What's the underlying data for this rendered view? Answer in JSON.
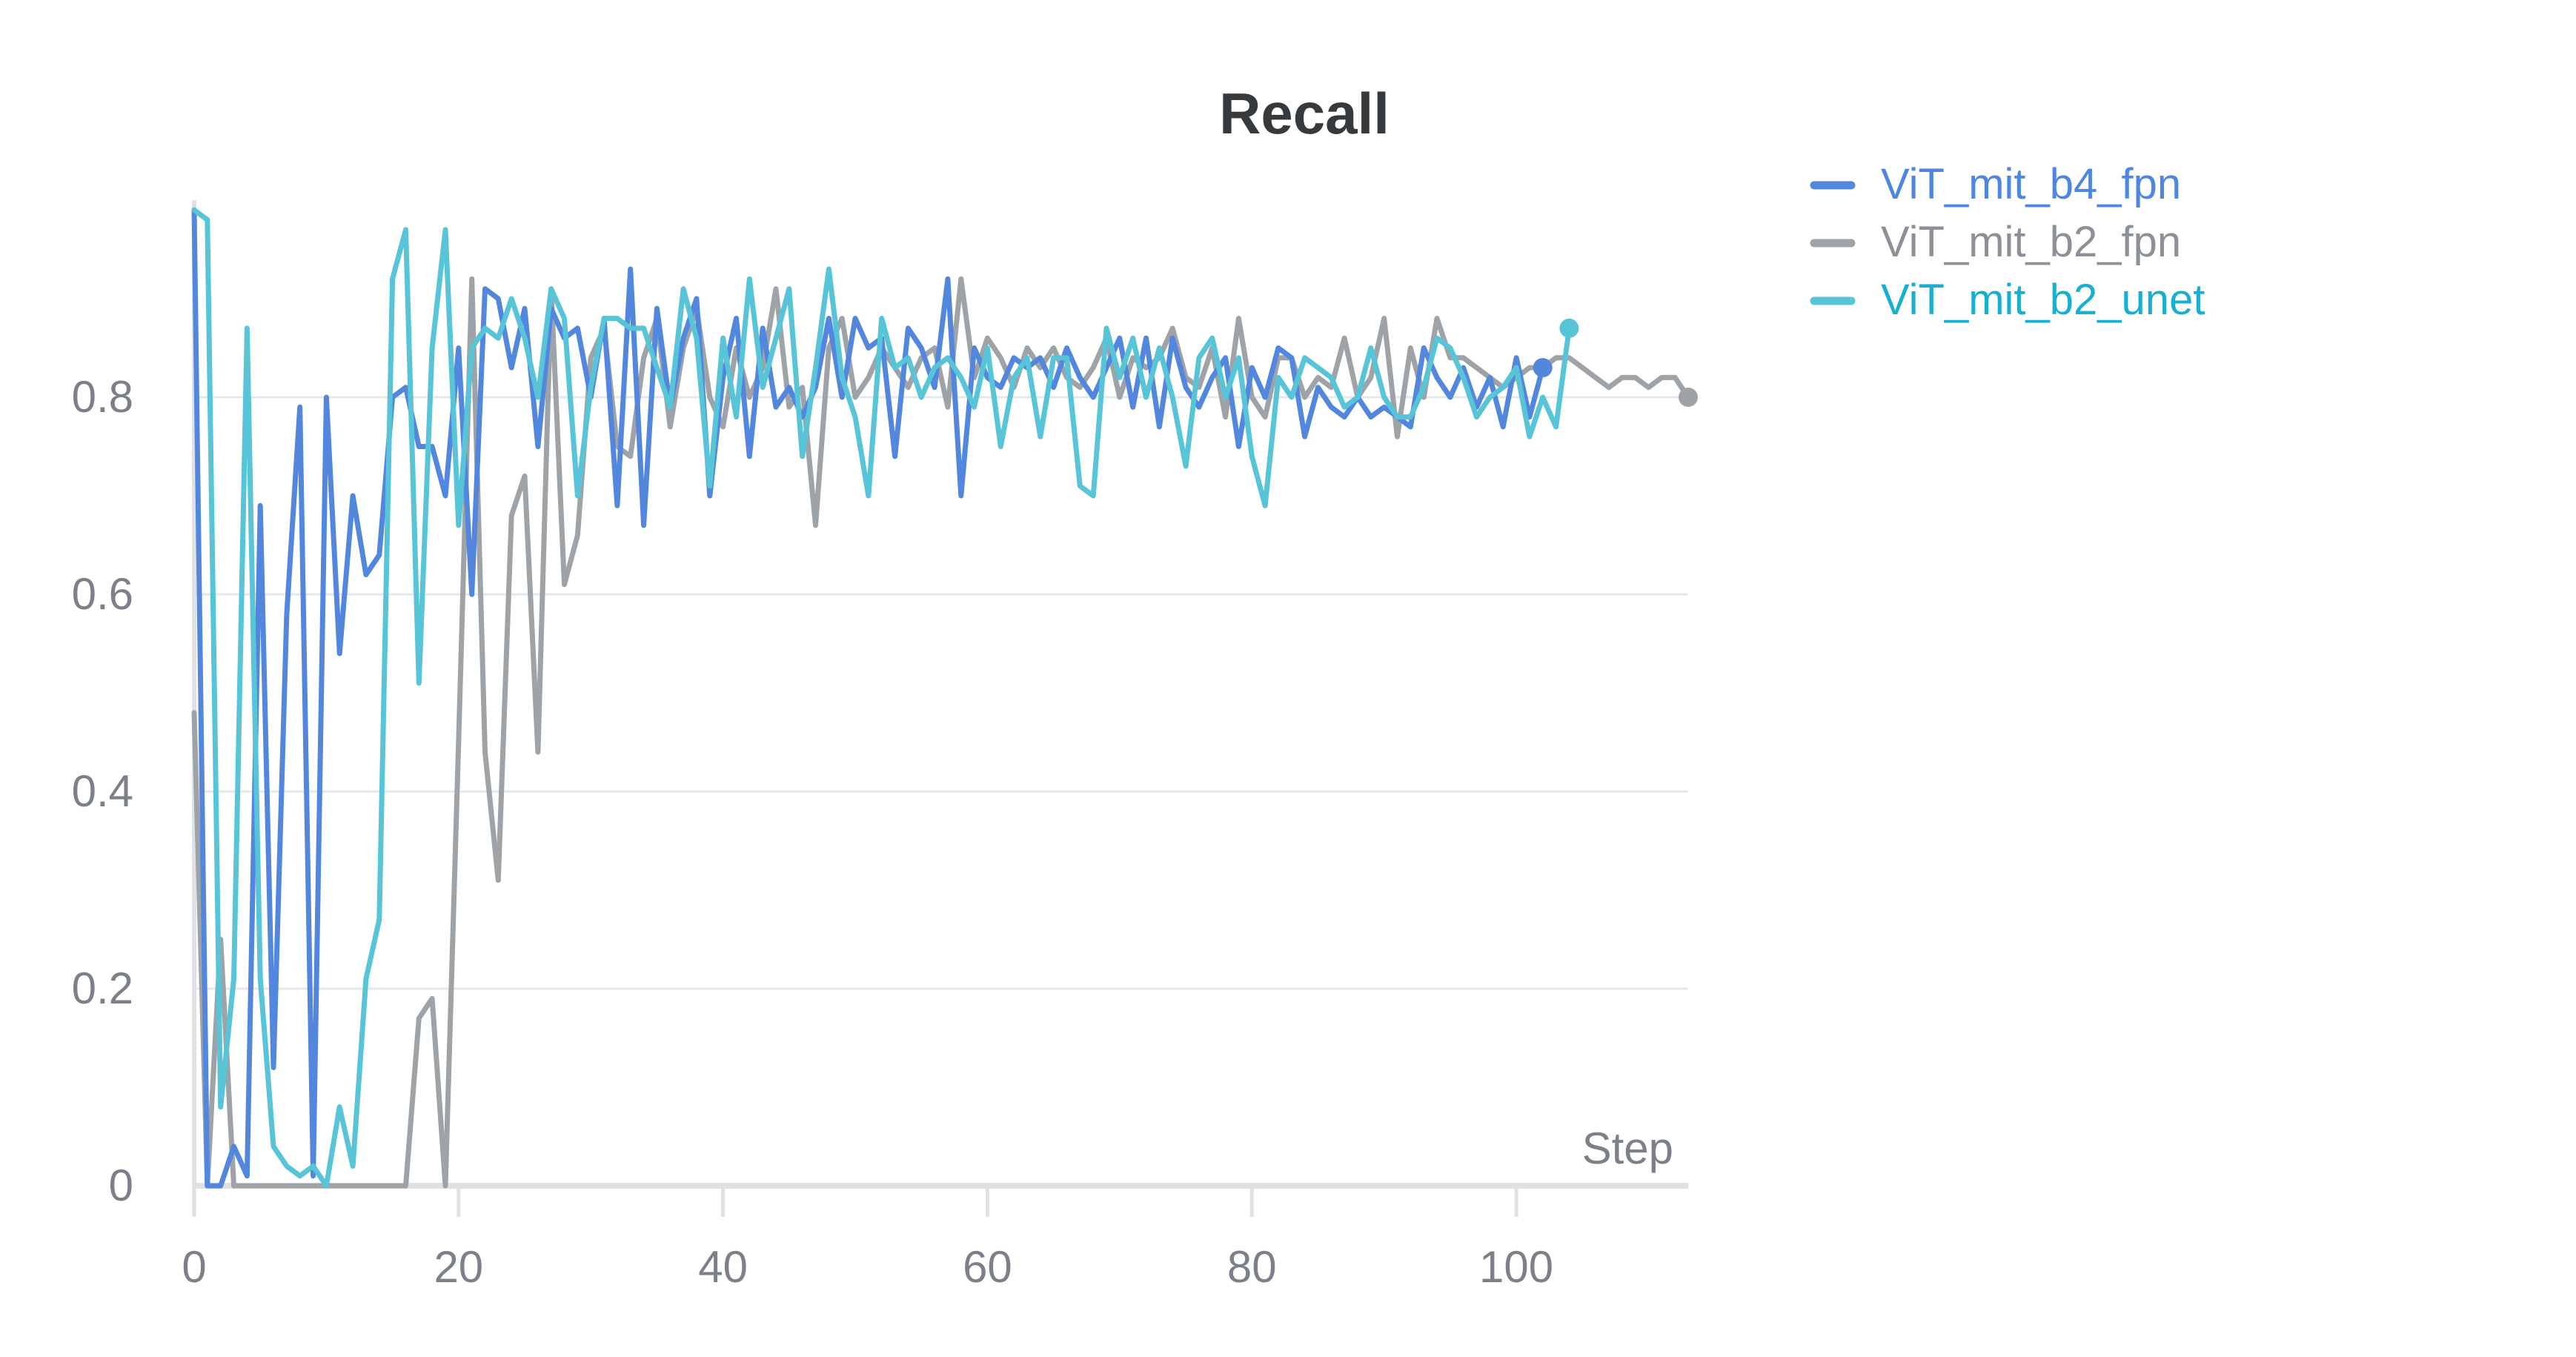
{
  "chart_data": {
    "type": "line",
    "title": "Recall",
    "xlabel": "Step",
    "ylabel": "",
    "xlim": [
      0,
      113
    ],
    "ylim": [
      0,
      1
    ],
    "x_ticks": [
      0,
      20,
      40,
      60,
      80,
      100
    ],
    "y_ticks": [
      0,
      0.2,
      0.4,
      0.6,
      0.8
    ],
    "y_tick_labels": [
      "0",
      "0.2",
      "0.4",
      "0.6",
      "0.8"
    ],
    "grid": true,
    "legend": "right",
    "series": [
      {
        "name": "ViT_mit_b4_fpn",
        "color": "#5387dd",
        "end_marker": true,
        "x": [
          0,
          1,
          2,
          3,
          4,
          5,
          6,
          7,
          8,
          9,
          10,
          11,
          12,
          13,
          14,
          15,
          16,
          17,
          18,
          19,
          20,
          21,
          22,
          23,
          24,
          25,
          26,
          27,
          28,
          29,
          30,
          31,
          32,
          33,
          34,
          35,
          36,
          37,
          38,
          39,
          40,
          41,
          42,
          43,
          44,
          45,
          46,
          47,
          48,
          49,
          50,
          51,
          52,
          53,
          54,
          55,
          56,
          57,
          58,
          59,
          60,
          61,
          62,
          63,
          64,
          65,
          66,
          67,
          68,
          69,
          70,
          71,
          72,
          73,
          74,
          75,
          76,
          77,
          78,
          79,
          80,
          81,
          82,
          83,
          84,
          85,
          86,
          87,
          88,
          89,
          90,
          91,
          92,
          93,
          94,
          95,
          96,
          97,
          98,
          99,
          100,
          101,
          102
        ],
        "y": [
          0.99,
          0.0,
          0.0,
          0.04,
          0.01,
          0.69,
          0.12,
          0.58,
          0.79,
          0.01,
          0.8,
          0.54,
          0.7,
          0.62,
          0.64,
          0.8,
          0.81,
          0.75,
          0.75,
          0.7,
          0.85,
          0.6,
          0.91,
          0.9,
          0.83,
          0.89,
          0.75,
          0.89,
          0.86,
          0.87,
          0.8,
          0.88,
          0.69,
          0.93,
          0.67,
          0.89,
          0.79,
          0.86,
          0.9,
          0.7,
          0.82,
          0.88,
          0.74,
          0.87,
          0.79,
          0.81,
          0.78,
          0.81,
          0.88,
          0.8,
          0.88,
          0.85,
          0.86,
          0.74,
          0.87,
          0.85,
          0.81,
          0.92,
          0.7,
          0.85,
          0.82,
          0.81,
          0.84,
          0.83,
          0.84,
          0.81,
          0.85,
          0.82,
          0.8,
          0.83,
          0.86,
          0.79,
          0.86,
          0.77,
          0.86,
          0.81,
          0.79,
          0.82,
          0.84,
          0.75,
          0.83,
          0.8,
          0.85,
          0.84,
          0.76,
          0.81,
          0.79,
          0.78,
          0.8,
          0.78,
          0.79,
          0.78,
          0.77,
          0.85,
          0.82,
          0.8,
          0.83,
          0.79,
          0.82,
          0.77,
          0.84,
          0.78,
          0.83
        ]
      },
      {
        "name": "ViT_mit_b2_fpn",
        "color": "#9ea3a8",
        "end_marker": true,
        "x": [
          0,
          1,
          2,
          3,
          4,
          5,
          6,
          7,
          8,
          9,
          10,
          11,
          12,
          13,
          14,
          15,
          16,
          17,
          18,
          19,
          20,
          21,
          22,
          23,
          24,
          25,
          26,
          27,
          28,
          29,
          30,
          31,
          32,
          33,
          34,
          35,
          36,
          37,
          38,
          39,
          40,
          41,
          42,
          43,
          44,
          45,
          46,
          47,
          48,
          49,
          50,
          51,
          52,
          53,
          54,
          55,
          56,
          57,
          58,
          59,
          60,
          61,
          62,
          63,
          64,
          65,
          66,
          67,
          68,
          69,
          70,
          71,
          72,
          73,
          74,
          75,
          76,
          77,
          78,
          79,
          80,
          81,
          82,
          83,
          84,
          85,
          86,
          87,
          88,
          89,
          90,
          91,
          92,
          93,
          94,
          95,
          96,
          97,
          98,
          99,
          100,
          101,
          102,
          103,
          104,
          105,
          106,
          107,
          108,
          109,
          110,
          111,
          112,
          113
        ],
        "y": [
          0.48,
          0.0,
          0.25,
          0.0,
          0.0,
          0.0,
          0.0,
          0.0,
          0.0,
          0.0,
          0.0,
          0.0,
          0.0,
          0.0,
          0.0,
          0.0,
          0.0,
          0.17,
          0.19,
          0.0,
          0.45,
          0.92,
          0.44,
          0.31,
          0.68,
          0.72,
          0.44,
          0.91,
          0.61,
          0.66,
          0.84,
          0.87,
          0.75,
          0.74,
          0.84,
          0.88,
          0.77,
          0.85,
          0.89,
          0.8,
          0.77,
          0.85,
          0.8,
          0.83,
          0.91,
          0.79,
          0.81,
          0.67,
          0.85,
          0.88,
          0.8,
          0.82,
          0.85,
          0.83,
          0.81,
          0.84,
          0.85,
          0.79,
          0.92,
          0.82,
          0.86,
          0.84,
          0.81,
          0.85,
          0.83,
          0.85,
          0.82,
          0.81,
          0.83,
          0.86,
          0.8,
          0.84,
          0.83,
          0.84,
          0.87,
          0.82,
          0.81,
          0.85,
          0.78,
          0.88,
          0.8,
          0.78,
          0.84,
          0.84,
          0.8,
          0.82,
          0.81,
          0.86,
          0.8,
          0.82,
          0.88,
          0.76,
          0.85,
          0.8,
          0.88,
          0.84,
          0.84,
          0.83,
          0.82,
          0.81,
          0.82,
          0.83,
          0.83,
          0.84,
          0.84,
          0.83,
          0.82,
          0.81,
          0.82,
          0.82,
          0.81,
          0.82,
          0.82,
          0.8
        ]
      },
      {
        "name": "ViT_mit_b2_unet",
        "color": "#58c4d8",
        "end_marker": true,
        "x": [
          0,
          1,
          2,
          3,
          4,
          5,
          6,
          7,
          8,
          9,
          10,
          11,
          12,
          13,
          14,
          15,
          16,
          17,
          18,
          19,
          20,
          21,
          22,
          23,
          24,
          25,
          26,
          27,
          28,
          29,
          30,
          31,
          32,
          33,
          34,
          35,
          36,
          37,
          38,
          39,
          40,
          41,
          42,
          43,
          44,
          45,
          46,
          47,
          48,
          49,
          50,
          51,
          52,
          53,
          54,
          55,
          56,
          57,
          58,
          59,
          60,
          61,
          62,
          63,
          64,
          65,
          66,
          67,
          68,
          69,
          70,
          71,
          72,
          73,
          74,
          75,
          76,
          77,
          78,
          79,
          80,
          81,
          82,
          83,
          84,
          85,
          86,
          87,
          88,
          89,
          90,
          91,
          92,
          93,
          94,
          95,
          96,
          97,
          98,
          99,
          100,
          101,
          102,
          103,
          104
        ],
        "y": [
          0.99,
          0.98,
          0.08,
          0.21,
          0.87,
          0.21,
          0.04,
          0.02,
          0.01,
          0.02,
          0.0,
          0.08,
          0.02,
          0.21,
          0.27,
          0.92,
          0.97,
          0.51,
          0.85,
          0.97,
          0.67,
          0.85,
          0.87,
          0.86,
          0.9,
          0.86,
          0.8,
          0.91,
          0.88,
          0.7,
          0.81,
          0.88,
          0.88,
          0.87,
          0.87,
          0.83,
          0.79,
          0.91,
          0.86,
          0.71,
          0.86,
          0.78,
          0.92,
          0.81,
          0.86,
          0.91,
          0.74,
          0.83,
          0.93,
          0.82,
          0.78,
          0.7,
          0.88,
          0.83,
          0.84,
          0.8,
          0.83,
          0.84,
          0.82,
          0.79,
          0.85,
          0.75,
          0.82,
          0.84,
          0.76,
          0.84,
          0.84,
          0.71,
          0.7,
          0.87,
          0.82,
          0.86,
          0.8,
          0.85,
          0.8,
          0.73,
          0.84,
          0.86,
          0.8,
          0.84,
          0.74,
          0.69,
          0.82,
          0.8,
          0.84,
          0.83,
          0.82,
          0.79,
          0.8,
          0.85,
          0.8,
          0.78,
          0.78,
          0.81,
          0.86,
          0.85,
          0.82,
          0.78,
          0.8,
          0.81,
          0.83,
          0.76,
          0.8,
          0.77,
          0.87
        ]
      }
    ]
  }
}
